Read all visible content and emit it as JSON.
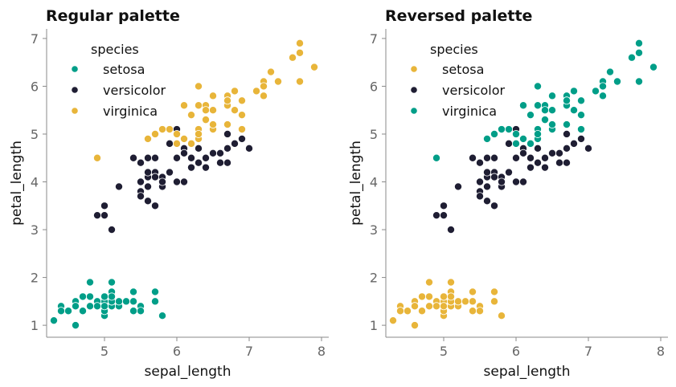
{
  "chart_data": [
    {
      "type": "scatter",
      "title": "Regular palette",
      "xlabel": "sepal_length",
      "ylabel": "petal_length",
      "xlim": [
        4.2,
        8.1
      ],
      "ylim": [
        0.75,
        7.2
      ],
      "xticks": [
        5,
        6,
        7,
        8
      ],
      "yticks": [
        1,
        2,
        3,
        4,
        5,
        6,
        7
      ],
      "grid": false,
      "legend": {
        "title": "species",
        "placement": "top-left"
      },
      "series": [
        {
          "name": "setosa",
          "color": "#009E88",
          "x": [
            5.1,
            4.9,
            4.7,
            4.6,
            5.0,
            5.4,
            4.6,
            5.0,
            4.4,
            4.9,
            5.4,
            4.8,
            4.8,
            4.3,
            5.8,
            5.7,
            5.4,
            5.1,
            5.7,
            5.1,
            5.4,
            5.1,
            4.6,
            5.1,
            4.8,
            5.0,
            5.0,
            5.2,
            5.2,
            4.7,
            4.8,
            5.4,
            5.2,
            5.5,
            4.9,
            5.0,
            5.5,
            4.9,
            4.4,
            5.1,
            5.0,
            4.5,
            4.4,
            5.0,
            5.1,
            4.8,
            5.1,
            4.6,
            5.3,
            5.0
          ],
          "y": [
            1.4,
            1.4,
            1.3,
            1.5,
            1.4,
            1.7,
            1.4,
            1.5,
            1.4,
            1.5,
            1.5,
            1.6,
            1.4,
            1.1,
            1.2,
            1.5,
            1.3,
            1.4,
            1.7,
            1.5,
            1.7,
            1.5,
            1.0,
            1.7,
            1.9,
            1.6,
            1.6,
            1.5,
            1.4,
            1.6,
            1.6,
            1.5,
            1.5,
            1.4,
            1.5,
            1.2,
            1.3,
            1.4,
            1.3,
            1.5,
            1.3,
            1.3,
            1.3,
            1.6,
            1.9,
            1.4,
            1.6,
            1.4,
            1.5,
            1.4
          ]
        },
        {
          "name": "versicolor",
          "color": "#1F1E33",
          "x": [
            7.0,
            6.4,
            6.9,
            5.5,
            6.5,
            5.7,
            6.3,
            4.9,
            6.6,
            5.2,
            5.0,
            5.9,
            6.0,
            6.1,
            5.6,
            6.7,
            5.6,
            5.8,
            6.2,
            5.6,
            5.9,
            6.1,
            6.3,
            6.1,
            6.4,
            6.6,
            6.8,
            6.7,
            6.0,
            5.7,
            5.5,
            5.5,
            5.8,
            6.0,
            5.4,
            6.0,
            6.7,
            6.3,
            5.6,
            5.5,
            5.5,
            6.1,
            5.8,
            5.0,
            5.6,
            5.7,
            5.7,
            6.2,
            5.1,
            5.7
          ],
          "y": [
            4.7,
            4.5,
            4.9,
            4.0,
            4.6,
            4.5,
            4.7,
            3.3,
            4.6,
            3.9,
            3.5,
            4.2,
            4.0,
            4.7,
            3.6,
            4.4,
            4.5,
            4.1,
            4.5,
            3.9,
            4.8,
            4.0,
            4.9,
            4.7,
            4.3,
            4.4,
            4.8,
            5.0,
            4.5,
            3.5,
            3.8,
            3.7,
            3.9,
            5.1,
            4.5,
            4.5,
            4.7,
            4.4,
            4.1,
            4.0,
            4.4,
            4.6,
            4.0,
            3.3,
            4.2,
            4.2,
            4.2,
            4.3,
            3.0,
            4.1
          ]
        },
        {
          "name": "virginica",
          "color": "#E8B53A",
          "x": [
            6.3,
            5.8,
            7.1,
            6.3,
            6.5,
            7.6,
            4.9,
            7.3,
            6.7,
            7.2,
            6.5,
            6.4,
            6.8,
            5.7,
            5.8,
            6.4,
            6.5,
            7.7,
            7.7,
            6.0,
            6.9,
            5.6,
            7.7,
            6.3,
            6.7,
            7.2,
            6.2,
            6.1,
            6.4,
            7.2,
            7.4,
            7.9,
            6.4,
            6.3,
            6.1,
            7.7,
            6.3,
            6.4,
            6.0,
            6.9,
            6.7,
            6.9,
            5.8,
            6.8,
            6.7,
            6.7,
            6.3,
            6.5,
            6.2,
            5.9
          ],
          "y": [
            6.0,
            5.1,
            5.9,
            5.6,
            5.8,
            6.6,
            4.5,
            6.3,
            5.8,
            6.1,
            5.1,
            5.3,
            5.5,
            5.0,
            5.1,
            5.3,
            5.5,
            6.7,
            6.9,
            5.0,
            5.7,
            4.9,
            6.7,
            4.9,
            5.7,
            6.0,
            4.8,
            4.9,
            5.6,
            5.8,
            6.1,
            6.4,
            5.6,
            5.1,
            5.6,
            6.1,
            5.6,
            5.5,
            4.8,
            5.4,
            5.6,
            5.1,
            5.1,
            5.9,
            5.7,
            5.2,
            5.0,
            5.2,
            5.4,
            5.1
          ]
        }
      ]
    },
    {
      "type": "scatter",
      "title": "Reversed palette",
      "xlabel": "sepal_length",
      "ylabel": "petal_length",
      "xlim": [
        4.2,
        8.1
      ],
      "ylim": [
        0.75,
        7.2
      ],
      "xticks": [
        5,
        6,
        7,
        8
      ],
      "yticks": [
        1,
        2,
        3,
        4,
        5,
        6,
        7
      ],
      "grid": false,
      "legend": {
        "title": "species",
        "placement": "top-left"
      },
      "series": [
        {
          "name": "setosa",
          "color": "#E8B53A",
          "x": [
            5.1,
            4.9,
            4.7,
            4.6,
            5.0,
            5.4,
            4.6,
            5.0,
            4.4,
            4.9,
            5.4,
            4.8,
            4.8,
            4.3,
            5.8,
            5.7,
            5.4,
            5.1,
            5.7,
            5.1,
            5.4,
            5.1,
            4.6,
            5.1,
            4.8,
            5.0,
            5.0,
            5.2,
            5.2,
            4.7,
            4.8,
            5.4,
            5.2,
            5.5,
            4.9,
            5.0,
            5.5,
            4.9,
            4.4,
            5.1,
            5.0,
            4.5,
            4.4,
            5.0,
            5.1,
            4.8,
            5.1,
            4.6,
            5.3,
            5.0
          ],
          "y": [
            1.4,
            1.4,
            1.3,
            1.5,
            1.4,
            1.7,
            1.4,
            1.5,
            1.4,
            1.5,
            1.5,
            1.6,
            1.4,
            1.1,
            1.2,
            1.5,
            1.3,
            1.4,
            1.7,
            1.5,
            1.7,
            1.5,
            1.0,
            1.7,
            1.9,
            1.6,
            1.6,
            1.5,
            1.4,
            1.6,
            1.6,
            1.5,
            1.5,
            1.4,
            1.5,
            1.2,
            1.3,
            1.4,
            1.3,
            1.5,
            1.3,
            1.3,
            1.3,
            1.6,
            1.9,
            1.4,
            1.6,
            1.4,
            1.5,
            1.4
          ]
        },
        {
          "name": "versicolor",
          "color": "#1F1E33",
          "x": [
            7.0,
            6.4,
            6.9,
            5.5,
            6.5,
            5.7,
            6.3,
            4.9,
            6.6,
            5.2,
            5.0,
            5.9,
            6.0,
            6.1,
            5.6,
            6.7,
            5.6,
            5.8,
            6.2,
            5.6,
            5.9,
            6.1,
            6.3,
            6.1,
            6.4,
            6.6,
            6.8,
            6.7,
            6.0,
            5.7,
            5.5,
            5.5,
            5.8,
            6.0,
            5.4,
            6.0,
            6.7,
            6.3,
            5.6,
            5.5,
            5.5,
            6.1,
            5.8,
            5.0,
            5.6,
            5.7,
            5.7,
            6.2,
            5.1,
            5.7
          ],
          "y": [
            4.7,
            4.5,
            4.9,
            4.0,
            4.6,
            4.5,
            4.7,
            3.3,
            4.6,
            3.9,
            3.5,
            4.2,
            4.0,
            4.7,
            3.6,
            4.4,
            4.5,
            4.1,
            4.5,
            3.9,
            4.8,
            4.0,
            4.9,
            4.7,
            4.3,
            4.4,
            4.8,
            5.0,
            4.5,
            3.5,
            3.8,
            3.7,
            3.9,
            5.1,
            4.5,
            4.5,
            4.7,
            4.4,
            4.1,
            4.0,
            4.4,
            4.6,
            4.0,
            3.3,
            4.2,
            4.2,
            4.2,
            4.3,
            3.0,
            4.1
          ]
        },
        {
          "name": "virginica",
          "color": "#009E88",
          "x": [
            6.3,
            5.8,
            7.1,
            6.3,
            6.5,
            7.6,
            4.9,
            7.3,
            6.7,
            7.2,
            6.5,
            6.4,
            6.8,
            5.7,
            5.8,
            6.4,
            6.5,
            7.7,
            7.7,
            6.0,
            6.9,
            5.6,
            7.7,
            6.3,
            6.7,
            7.2,
            6.2,
            6.1,
            6.4,
            7.2,
            7.4,
            7.9,
            6.4,
            6.3,
            6.1,
            7.7,
            6.3,
            6.4,
            6.0,
            6.9,
            6.7,
            6.9,
            5.8,
            6.8,
            6.7,
            6.7,
            6.3,
            6.5,
            6.2,
            5.9
          ],
          "y": [
            6.0,
            5.1,
            5.9,
            5.6,
            5.8,
            6.6,
            4.5,
            6.3,
            5.8,
            6.1,
            5.1,
            5.3,
            5.5,
            5.0,
            5.1,
            5.3,
            5.5,
            6.7,
            6.9,
            5.0,
            5.7,
            4.9,
            6.7,
            4.9,
            5.7,
            6.0,
            4.8,
            4.9,
            5.6,
            5.8,
            6.1,
            6.4,
            5.6,
            5.1,
            5.6,
            6.1,
            5.6,
            5.5,
            4.8,
            5.4,
            5.6,
            5.1,
            5.1,
            5.9,
            5.7,
            5.2,
            5.0,
            5.2,
            5.4,
            5.1
          ]
        }
      ]
    }
  ]
}
